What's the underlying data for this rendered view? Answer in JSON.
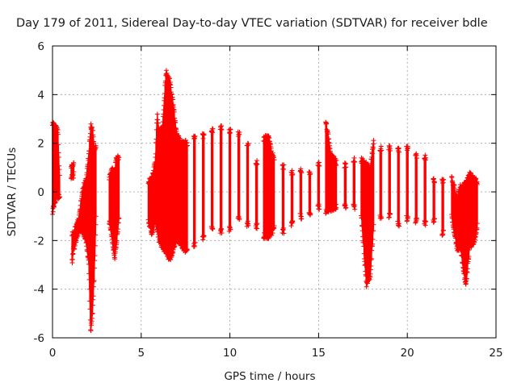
{
  "chart_data": {
    "type": "scatter",
    "title": "Day 179 of 2011, Sidereal Day-to-day VTEC variation (SDTVAR) for receiver bdle",
    "xlabel": "GPS time / hours",
    "ylabel": "SDTVAR / TECUs",
    "xlim": [
      0,
      25
    ],
    "ylim": [
      -6,
      6
    ],
    "xticks": [
      0,
      5,
      10,
      15,
      20,
      25
    ],
    "yticks": [
      -6,
      -4,
      -2,
      0,
      2,
      4,
      6
    ],
    "grid": true,
    "marker": "+",
    "series_color": "#ff0000",
    "envelope": [
      [
        0.0,
        -0.8,
        2.8
      ],
      [
        0.1,
        -0.5,
        2.7
      ],
      [
        0.2,
        -0.2,
        2.6
      ],
      [
        0.3,
        -0.2,
        2.5
      ],
      [
        0.4,
        -0.1,
        0.6
      ],
      [
        1.05,
        0.6,
        1.1
      ],
      [
        1.2,
        0.7,
        1.1
      ],
      [
        1.1,
        -2.9,
        -1.7
      ],
      [
        1.2,
        -2.3,
        -1.7
      ],
      [
        1.5,
        -1.5,
        -1.0
      ],
      [
        1.7,
        -1.6,
        0.1
      ],
      [
        1.9,
        -2.0,
        0.5
      ],
      [
        2.05,
        -3.0,
        1.5
      ],
      [
        2.15,
        -5.7,
        2.7
      ],
      [
        2.25,
        -5.0,
        2.6
      ],
      [
        2.35,
        -3.5,
        1.8
      ],
      [
        2.45,
        -1.0,
        1.9
      ],
      [
        3.2,
        -1.2,
        0.6
      ],
      [
        3.35,
        -1.8,
        0.9
      ],
      [
        3.5,
        -2.8,
        0.8
      ],
      [
        3.6,
        -2.2,
        1.3
      ],
      [
        3.75,
        -1.0,
        1.4
      ],
      [
        5.4,
        -1.2,
        0.4
      ],
      [
        5.6,
        -1.7,
        0.5
      ],
      [
        5.8,
        -1.2,
        1.3
      ],
      [
        5.9,
        -1.5,
        3.2
      ],
      [
        6.0,
        -2.0,
        2.4
      ],
      [
        6.2,
        -2.3,
        2.7
      ],
      [
        6.4,
        -2.4,
        4.9
      ],
      [
        6.6,
        -2.8,
        4.6
      ],
      [
        6.8,
        -2.4,
        3.6
      ],
      [
        7.0,
        -1.9,
        2.3
      ],
      [
        7.3,
        -2.2,
        2.0
      ],
      [
        7.6,
        -2.5,
        2.0
      ],
      [
        8.0,
        -2.2,
        2.2
      ],
      [
        8.5,
        -1.9,
        2.3
      ],
      [
        9.0,
        -1.5,
        2.5
      ],
      [
        9.5,
        -1.6,
        2.6
      ],
      [
        10.0,
        -1.5,
        2.5
      ],
      [
        10.5,
        -1.1,
        2.4
      ],
      [
        11.0,
        -1.3,
        1.9
      ],
      [
        11.5,
        -1.4,
        1.2
      ],
      [
        11.9,
        -1.8,
        2.2
      ],
      [
        12.2,
        -1.8,
        2.2
      ],
      [
        12.5,
        -1.5,
        1.2
      ],
      [
        13.0,
        -1.6,
        1.0
      ],
      [
        13.5,
        -1.3,
        0.8
      ],
      [
        14.0,
        -1.0,
        0.9
      ],
      [
        14.5,
        -0.9,
        0.8
      ],
      [
        15.0,
        -0.6,
        1.1
      ],
      [
        15.4,
        -0.8,
        2.9
      ],
      [
        15.7,
        -0.7,
        1.5
      ],
      [
        16.0,
        -0.6,
        1.2
      ],
      [
        16.5,
        -0.6,
        1.1
      ],
      [
        17.0,
        -0.6,
        1.3
      ],
      [
        17.4,
        -0.9,
        1.3
      ],
      [
        17.7,
        -3.8,
        1.1
      ],
      [
        17.9,
        -3.5,
        0.9
      ],
      [
        18.1,
        -1.4,
        2.1
      ],
      [
        18.5,
        -1.0,
        1.8
      ],
      [
        19.0,
        -1.0,
        1.8
      ],
      [
        19.5,
        -1.3,
        1.7
      ],
      [
        20.0,
        -1.1,
        1.8
      ],
      [
        20.5,
        -1.2,
        1.5
      ],
      [
        21.0,
        -1.3,
        1.4
      ],
      [
        21.5,
        -1.2,
        0.5
      ],
      [
        22.0,
        -1.7,
        0.4
      ],
      [
        22.5,
        -1.0,
        0.6
      ],
      [
        22.8,
        -2.3,
        -0.3
      ],
      [
        23.0,
        -2.3,
        0.2
      ],
      [
        23.3,
        -3.9,
        0.3
      ],
      [
        23.5,
        -2.3,
        0.7
      ],
      [
        23.8,
        -2.0,
        0.5
      ],
      [
        23.95,
        -1.4,
        0.4
      ]
    ]
  }
}
